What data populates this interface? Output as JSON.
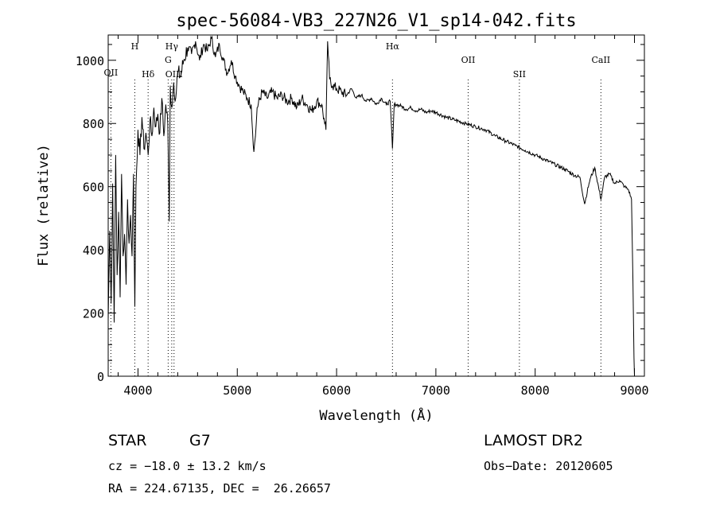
{
  "chart_data": {
    "type": "line",
    "title": "spec-56084-VB3_227N26_V1_sp14-042.fits",
    "xlabel": "Wavelength (Å)",
    "ylabel": "Flux (relative)",
    "xlim": [
      3700,
      9100
    ],
    "ylim": [
      0,
      1080
    ],
    "xticks": [
      4000,
      5000,
      6000,
      7000,
      8000,
      9000
    ],
    "yticks": [
      0,
      200,
      400,
      600,
      800,
      1000
    ],
    "grid": false,
    "series": [
      {
        "x": [
          3700,
          3715,
          3730,
          3745,
          3760,
          3775,
          3790,
          3805,
          3820,
          3835,
          3850,
          3865,
          3880,
          3895,
          3910,
          3925,
          3940,
          3955,
          3968,
          3980,
          4000,
          4020,
          4040,
          4060,
          4080,
          4102,
          4120,
          4140,
          4160,
          4180,
          4200,
          4220,
          4240,
          4260,
          4280,
          4300,
          4315,
          4325,
          4340,
          4360,
          4380,
          4400,
          4430,
          4460,
          4500,
          4540,
          4580,
          4620,
          4660,
          4700,
          4740,
          4780,
          4820,
          4860,
          4900,
          4940,
          4980,
          5020,
          5060,
          5100,
          5140,
          5167,
          5183,
          5200,
          5250,
          5300,
          5350,
          5400,
          5450,
          5500,
          5550,
          5600,
          5650,
          5700,
          5750,
          5800,
          5850,
          5880,
          5893,
          5910,
          5930,
          5960,
          6000,
          6050,
          6100,
          6150,
          6200,
          6250,
          6300,
          6350,
          6400,
          6450,
          6500,
          6540,
          6563,
          6580,
          6600,
          6650,
          6700,
          6750,
          6800,
          6850,
          6900,
          6950,
          7000,
          7100,
          7200,
          7300,
          7400,
          7500,
          7600,
          7700,
          7800,
          7900,
          8000,
          8100,
          8200,
          8300,
          8400,
          8450,
          8498,
          8542,
          8560,
          8600,
          8662,
          8700,
          8750,
          8800,
          8850,
          8900,
          8940,
          8970,
          8985,
          8995,
          9000
        ],
        "y": [
          180,
          460,
          230,
          610,
          170,
          700,
          320,
          520,
          250,
          640,
          380,
          450,
          290,
          560,
          420,
          510,
          380,
          640,
          220,
          600,
          780,
          700,
          820,
          720,
          770,
          700,
          810,
          760,
          850,
          790,
          830,
          770,
          880,
          760,
          860,
          800,
          490,
          920,
          850,
          930,
          880,
          960,
          950,
          1000,
          1040,
          1020,
          1060,
          1000,
          1050,
          1030,
          1070,
          1010,
          1050,
          1000,
          960,
          1000,
          950,
          920,
          900,
          880,
          860,
          710,
          760,
          850,
          900,
          880,
          900,
          880,
          890,
          870,
          880,
          850,
          880,
          860,
          840,
          870,
          860,
          800,
          780,
          1060,
          940,
          920,
          910,
          900,
          890,
          910,
          880,
          890,
          870,
          880,
          860,
          880,
          860,
          870,
          720,
          860,
          860,
          855,
          845,
          850,
          840,
          845,
          835,
          840,
          835,
          820,
          810,
          800,
          790,
          780,
          760,
          745,
          730,
          715,
          700,
          685,
          670,
          655,
          635,
          630,
          545,
          610,
          630,
          660,
          560,
          630,
          640,
          610,
          620,
          600,
          590,
          560,
          300,
          60,
          0
        ]
      }
    ],
    "line_markers": [
      {
        "label": "OII",
        "x": 3727
      },
      {
        "label": "H",
        "x": 3968
      },
      {
        "label": "Hδ",
        "x": 4102
      },
      {
        "label": "Hγ",
        "x": 4340
      },
      {
        "label": "G",
        "x": 4304
      },
      {
        "label": "OIII",
        "x": 4363
      },
      {
        "label": "Hα",
        "x": 6563
      },
      {
        "label": "OII",
        "x": 7325
      },
      {
        "label": "SII",
        "x": 7841
      },
      {
        "label": "CaII",
        "x": 8662
      }
    ]
  },
  "info": {
    "object_class": "STAR",
    "subclass": "G7",
    "cz": "cz = −18.0 ± 13.2 km/s",
    "coords": "RA = 224.67135, DEC =  26.26657",
    "survey": "LAMOST DR2",
    "obs_date": "Obs−Date: 20120605"
  }
}
